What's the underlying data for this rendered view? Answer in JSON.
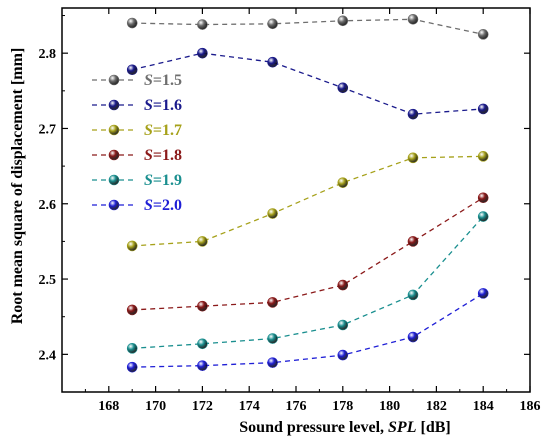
{
  "chart_data": {
    "type": "line",
    "xlabel": "Sound pressure level,",
    "xlabel_var": "SPL",
    "xlabel_unit": "[dB]",
    "ylabel": "Root mean square of displacement [mm]",
    "xlim": [
      166,
      186
    ],
    "ylim": [
      2.35,
      2.86
    ],
    "xticks": [
      "168",
      "170",
      "172",
      "174",
      "176",
      "178",
      "180",
      "182",
      "184",
      "186"
    ],
    "yticks": [
      "2.4",
      "2.5",
      "2.6",
      "2.7",
      "2.8"
    ],
    "x": [
      169,
      172,
      175,
      178,
      181,
      184
    ],
    "legend_position": "upper-left",
    "series": [
      {
        "name": "S=1.5",
        "name_var": "S",
        "name_val": "=1.5",
        "color": "#6e6e6e",
        "values": [
          2.84,
          2.838,
          2.839,
          2.843,
          2.845,
          2.825
        ]
      },
      {
        "name": "S=1.6",
        "name_var": "S",
        "name_val": "=1.6",
        "color": "#1a1a8c",
        "values": [
          2.778,
          2.8,
          2.788,
          2.754,
          2.719,
          2.726
        ]
      },
      {
        "name": "S=1.7",
        "name_var": "S",
        "name_val": "=1.7",
        "color": "#a6a11a",
        "values": [
          2.544,
          2.55,
          2.587,
          2.628,
          2.661,
          2.663
        ]
      },
      {
        "name": "S=1.8",
        "name_var": "S",
        "name_val": "=1.8",
        "color": "#8b1a1a",
        "values": [
          2.459,
          2.464,
          2.469,
          2.492,
          2.55,
          2.608
        ]
      },
      {
        "name": "S=1.9",
        "name_var": "S",
        "name_val": "=1.9",
        "color": "#1a8f8f",
        "values": [
          2.408,
          2.414,
          2.421,
          2.439,
          2.479,
          2.583
        ]
      },
      {
        "name": "S=2.0",
        "name_var": "S",
        "name_val": "=2.0",
        "color": "#1f1fd6",
        "values": [
          2.383,
          2.385,
          2.389,
          2.399,
          2.423,
          2.481
        ]
      }
    ]
  }
}
